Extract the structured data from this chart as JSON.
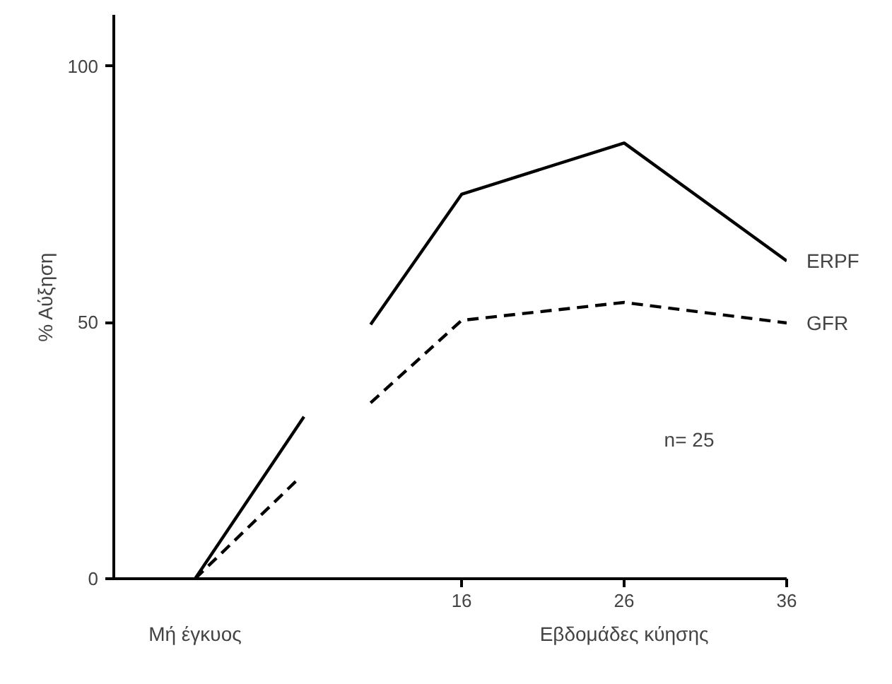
{
  "chart_data": {
    "type": "line",
    "ylabel": "% Αύξηση",
    "xlabel": "Εβδομάδες κύησης",
    "annotations": [
      "Μή έγκυος",
      "n= 25"
    ],
    "xlim": [
      -5.4,
      36
    ],
    "ylim": [
      0,
      110
    ],
    "xticks": [
      16,
      26,
      36
    ],
    "yticks": [
      0,
      50,
      100
    ],
    "grid": false,
    "legend": false,
    "series": [
      {
        "name": "ERPF",
        "color": "#000000",
        "line_style": "solid",
        "x": [
          -0.4,
          6.3,
          8,
          10.4,
          16,
          26,
          36
        ],
        "values": [
          0,
          31.6,
          null,
          49.6,
          75,
          85,
          62
        ]
      },
      {
        "name": "GFR",
        "color": "#000000",
        "line_style": "dashed",
        "x": [
          -0.4,
          6.0,
          8,
          10.4,
          16,
          26,
          36
        ],
        "values": [
          0,
          19.6,
          null,
          34.3,
          50.4,
          53.9,
          49.9
        ]
      }
    ]
  }
}
